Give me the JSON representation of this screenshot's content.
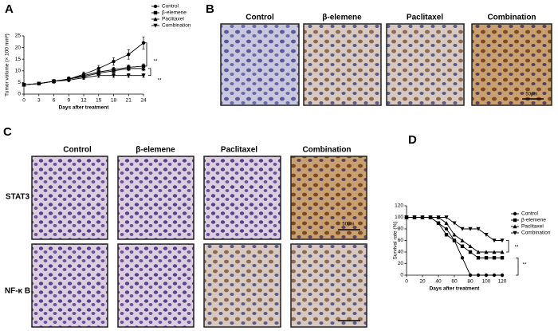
{
  "panel_labels": [
    "A",
    "B",
    "C",
    "D"
  ],
  "panel_b": {
    "columns": [
      "Control",
      "β-elemene",
      "Paclitaxel",
      "Combination"
    ],
    "scale_bar": "50μm"
  },
  "panel_c": {
    "columns": [
      "Control",
      "β-elemene",
      "Paclitaxel",
      "Combination"
    ],
    "rows": [
      "STAT3",
      "NF-κ B"
    ],
    "scale_bar": "50μm"
  },
  "chart_data": [
    {
      "type": "line",
      "xlabel": "Days after treatment",
      "ylabel": "Tumor volume (× 100 mm³)",
      "x": [
        0,
        3,
        6,
        9,
        12,
        15,
        18,
        21,
        24
      ],
      "xlim": [
        0,
        24
      ],
      "xticks": [
        0,
        3,
        6,
        9,
        12,
        15,
        18,
        21,
        24
      ],
      "ylim": [
        0,
        25
      ],
      "yticks": [
        0,
        5,
        10,
        15,
        20,
        25
      ],
      "series": [
        {
          "name": "Control",
          "color": "#000000",
          "marker": "circle",
          "values": [
            4,
            4.5,
            5.5,
            6.5,
            8.5,
            11,
            14,
            17,
            22
          ],
          "errors": [
            0.6,
            0.6,
            0.8,
            0.9,
            1,
            1.3,
            1.6,
            2,
            2.6
          ]
        },
        {
          "name": "β-elemene",
          "color": "#000000",
          "marker": "square",
          "values": [
            4,
            4.5,
            5.5,
            6.5,
            8,
            9.5,
            10.5,
            11.5,
            12
          ],
          "errors": [
            0.6,
            0.6,
            0.7,
            0.8,
            0.9,
            1,
            1,
            1,
            1
          ]
        },
        {
          "name": "Paclitaxel",
          "color": "#000000",
          "marker": "triangle-up",
          "values": [
            4,
            4.5,
            5.5,
            6.5,
            7.5,
            9,
            10,
            11,
            11
          ],
          "errors": [
            0.6,
            0.6,
            0.7,
            0.8,
            0.8,
            0.9,
            0.9,
            1,
            1
          ]
        },
        {
          "name": "Combination",
          "color": "#000000",
          "marker": "triangle-down",
          "values": [
            4,
            4.5,
            5.5,
            6,
            7,
            8,
            8,
            8,
            8
          ],
          "errors": [
            0.6,
            0.6,
            0.6,
            0.7,
            0.7,
            0.8,
            0.8,
            0.8,
            0.8
          ]
        }
      ],
      "annotations": [
        "**",
        "**"
      ]
    },
    {
      "type": "line",
      "xlabel": "Days after treatment",
      "ylabel": "Survival rate (%)",
      "x": [
        0,
        10,
        20,
        30,
        40,
        50,
        60,
        70,
        80,
        90,
        100,
        110,
        120
      ],
      "xlim": [
        0,
        120
      ],
      "xticks": [
        0,
        20,
        40,
        60,
        80,
        100,
        120
      ],
      "ylim": [
        0,
        120
      ],
      "yticks": [
        0,
        20,
        40,
        60,
        80,
        100,
        120
      ],
      "series": [
        {
          "name": "Control",
          "color": "#000000",
          "marker": "circle",
          "values": [
            100,
            100,
            100,
            100,
            90,
            80,
            60,
            30,
            0,
            0,
            0,
            0,
            0
          ]
        },
        {
          "name": "β-elemene",
          "color": "#000000",
          "marker": "square",
          "values": [
            100,
            100,
            100,
            100,
            90,
            70,
            60,
            50,
            40,
            30,
            30,
            30,
            30
          ]
        },
        {
          "name": "Paclitaxel",
          "color": "#000000",
          "marker": "triangle-up",
          "values": [
            100,
            100,
            100,
            100,
            100,
            90,
            70,
            60,
            50,
            40,
            40,
            40,
            40
          ]
        },
        {
          "name": "Combination",
          "color": "#000000",
          "marker": "triangle-down",
          "values": [
            100,
            100,
            100,
            100,
            100,
            100,
            90,
            80,
            80,
            80,
            70,
            60,
            60
          ]
        }
      ],
      "annotations": [
        "**",
        "**"
      ]
    }
  ]
}
